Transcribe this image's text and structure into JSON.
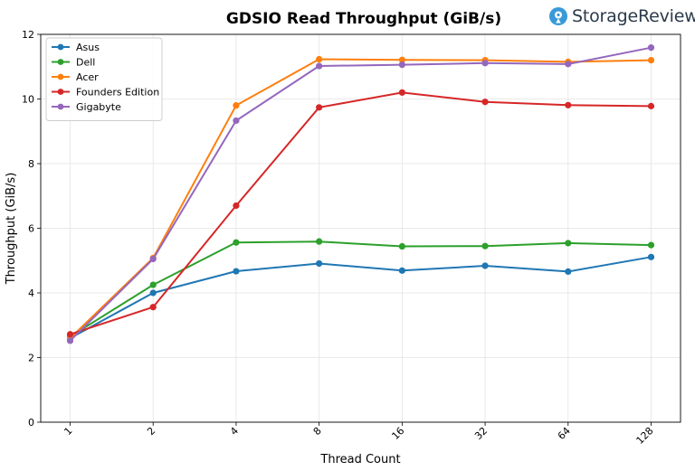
{
  "brand": {
    "name": "StorageReview",
    "icon": "storagereview-logo-icon",
    "color": "#3a9ad9"
  },
  "chart_data": {
    "type": "line",
    "title": "GDSIO Read Throughput (GiB/s)",
    "xlabel": "Thread Count",
    "ylabel": "Throughput (GiB/s)",
    "categories": [
      "1",
      "2",
      "4",
      "8",
      "16",
      "32",
      "64",
      "128"
    ],
    "ylim": [
      0,
      12
    ],
    "yticks": [
      0,
      2,
      4,
      6,
      8,
      10,
      12
    ],
    "grid": true,
    "legend_position": "top-left",
    "series": [
      {
        "name": "Asus",
        "color": "#1f77b4",
        "values": [
          2.6,
          4.0,
          4.67,
          4.91,
          4.69,
          4.84,
          4.66,
          5.11
        ]
      },
      {
        "name": "Dell",
        "color": "#2ca02c",
        "values": [
          2.65,
          4.25,
          5.56,
          5.59,
          5.44,
          5.45,
          5.54,
          5.48
        ]
      },
      {
        "name": "Acer",
        "color": "#ff7f0e",
        "values": [
          2.6,
          5.08,
          9.8,
          11.23,
          11.21,
          11.2,
          11.15,
          11.2
        ]
      },
      {
        "name": "Founders Edition",
        "color": "#d62728",
        "values": [
          2.72,
          3.56,
          6.7,
          9.74,
          10.2,
          9.91,
          9.81,
          9.78
        ]
      },
      {
        "name": "Gigabyte",
        "color": "#9467bd",
        "values": [
          2.52,
          5.05,
          9.33,
          11.02,
          11.06,
          11.11,
          11.08,
          11.59
        ]
      }
    ]
  }
}
